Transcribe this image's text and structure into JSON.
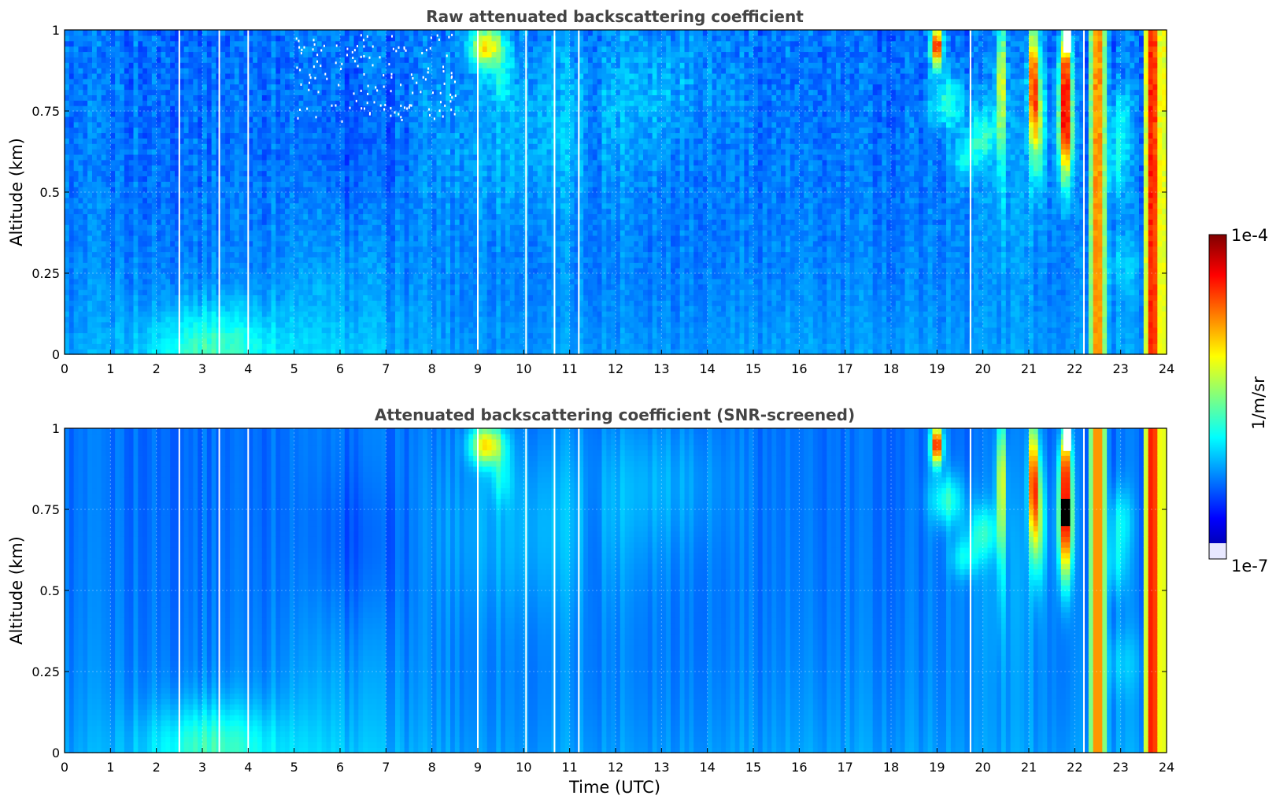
{
  "chart_data": [
    {
      "type": "heatmap",
      "title": "Raw attenuated backscattering coefficient",
      "xlabel": "",
      "ylabel": "Altitude (km)",
      "xlim": [
        0,
        24
      ],
      "ylim": [
        0,
        1
      ],
      "xticks": [
        "0",
        "1",
        "2",
        "3",
        "4",
        "5",
        "6",
        "7",
        "8",
        "9",
        "10",
        "11",
        "12",
        "13",
        "14",
        "15",
        "16",
        "17",
        "18",
        "19",
        "20",
        "21",
        "22",
        "23",
        "24"
      ],
      "yticks": [
        "0",
        "0.25",
        "0.5",
        "0.75",
        "1"
      ],
      "grid": true,
      "gaps_utc": [
        2.5,
        3.37,
        4.0,
        9.0,
        10.05,
        10.67,
        11.2,
        19.73,
        22.2
      ],
      "features": [
        {
          "label": "surface aerosol layer",
          "t_range": [
            1.5,
            4.5
          ],
          "alt_top_km": 0.17,
          "level": "medium"
        },
        {
          "label": "cloud",
          "t_range": [
            8.8,
            9.6
          ],
          "alt_range_km": [
            0.9,
            1.0
          ],
          "level": "high"
        },
        {
          "label": "cloud",
          "t_range": [
            18.85,
            19.15
          ],
          "alt_range_km": [
            0.88,
            1.0
          ],
          "level": "very high"
        },
        {
          "label": "cloud",
          "t_range": [
            21.0,
            21.3
          ],
          "alt_range_km": [
            0.65,
            1.0
          ],
          "level": "high"
        },
        {
          "label": "cloud",
          "t_range": [
            21.6,
            21.95
          ],
          "alt_range_km": [
            0.55,
            0.95
          ],
          "level": "very high"
        },
        {
          "label": "precipitation/low cloud",
          "t_range": [
            22.45,
            22.55
          ],
          "alt_range_km": [
            0.0,
            1.0
          ],
          "level": "high"
        },
        {
          "label": "precipitation/low cloud",
          "t_range": [
            23.6,
            23.85
          ],
          "alt_range_km": [
            0.0,
            1.0
          ],
          "level": "very high"
        }
      ]
    },
    {
      "type": "heatmap",
      "title": "Attenuated backscattering coefficient (SNR-screened)",
      "xlabel": "Time (UTC)",
      "ylabel": "Altitude (km)",
      "xlim": [
        0,
        24
      ],
      "ylim": [
        0,
        1
      ],
      "xticks": [
        "0",
        "1",
        "2",
        "3",
        "4",
        "5",
        "6",
        "7",
        "8",
        "9",
        "10",
        "11",
        "12",
        "13",
        "14",
        "15",
        "16",
        "17",
        "18",
        "19",
        "20",
        "21",
        "22",
        "23",
        "24"
      ],
      "yticks": [
        "0",
        "0.25",
        "0.5",
        "0.75",
        "1"
      ],
      "grid": true,
      "gaps_utc": [
        2.5,
        3.37,
        4.0,
        9.0,
        10.05,
        10.67,
        11.2,
        19.73,
        22.2
      ]
    }
  ],
  "colorbar": {
    "label": "1/m/sr",
    "max_label": "1e-4",
    "min_label": "1e-7",
    "scale": "log",
    "range": [
      1e-07,
      0.0001
    ],
    "colormap": "jet",
    "under_color": "#ffffff",
    "over_color": "#000000"
  }
}
